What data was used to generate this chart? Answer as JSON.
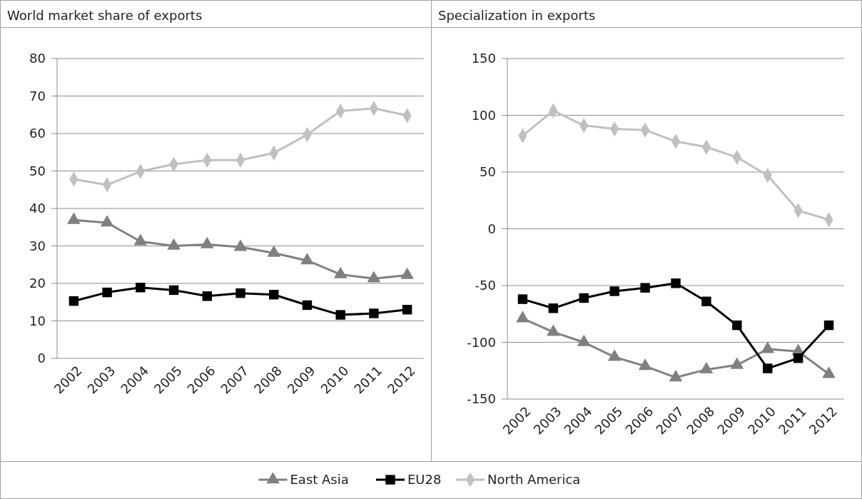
{
  "chart_data": [
    {
      "type": "line",
      "title": "World market share of exports",
      "categories": [
        "2002",
        "2003",
        "2004",
        "2005",
        "2006",
        "2007",
        "2008",
        "2009",
        "2010",
        "2011",
        "2012"
      ],
      "ylim": [
        0,
        80
      ],
      "yticks": [
        0,
        10,
        20,
        30,
        40,
        50,
        60,
        70,
        80
      ],
      "grid": "y",
      "legend": "bottom",
      "series": [
        {
          "name": "East Asia",
          "color": "#808080",
          "marker": "triangle",
          "values": [
            36.9,
            36.2,
            31.2,
            30.0,
            30.4,
            29.7,
            28.1,
            26.1,
            22.4,
            21.3,
            22.2
          ]
        },
        {
          "name": "EU28",
          "color": "#000000",
          "marker": "square",
          "values": [
            15.3,
            17.6,
            18.9,
            18.2,
            16.6,
            17.4,
            17.0,
            14.2,
            11.6,
            12.0,
            13.0
          ]
        },
        {
          "name": "North America",
          "color": "#c0c0c0",
          "marker": "diamond",
          "values": [
            47.8,
            46.3,
            49.9,
            51.8,
            52.9,
            52.9,
            54.8,
            59.7,
            66.0,
            66.7,
            64.8
          ]
        }
      ]
    },
    {
      "type": "line",
      "title": "Specialization in exports",
      "categories": [
        "2002",
        "2003",
        "2004",
        "2005",
        "2006",
        "2007",
        "2008",
        "2009",
        "2010",
        "2011",
        "2012"
      ],
      "ylim": [
        -150,
        150
      ],
      "yticks": [
        -150,
        -100,
        -50,
        0,
        50,
        100,
        150
      ],
      "grid": "y",
      "series": [
        {
          "color": "#808080",
          "marker": "triangle",
          "values": [
            -79,
            -91,
            -100,
            -113,
            -121,
            -131,
            -124,
            -120,
            -106,
            -108,
            -128
          ]
        },
        {
          "color": "#000000",
          "marker": "square",
          "values": [
            -62,
            -70,
            -61,
            -55,
            -52,
            -48,
            -64,
            -85,
            -123,
            -114,
            -85
          ]
        },
        {
          "color": "#c0c0c0",
          "marker": "diamond",
          "values": [
            82,
            104,
            91,
            88,
            87,
            77,
            72,
            63,
            47,
            16,
            8
          ]
        }
      ]
    }
  ]
}
